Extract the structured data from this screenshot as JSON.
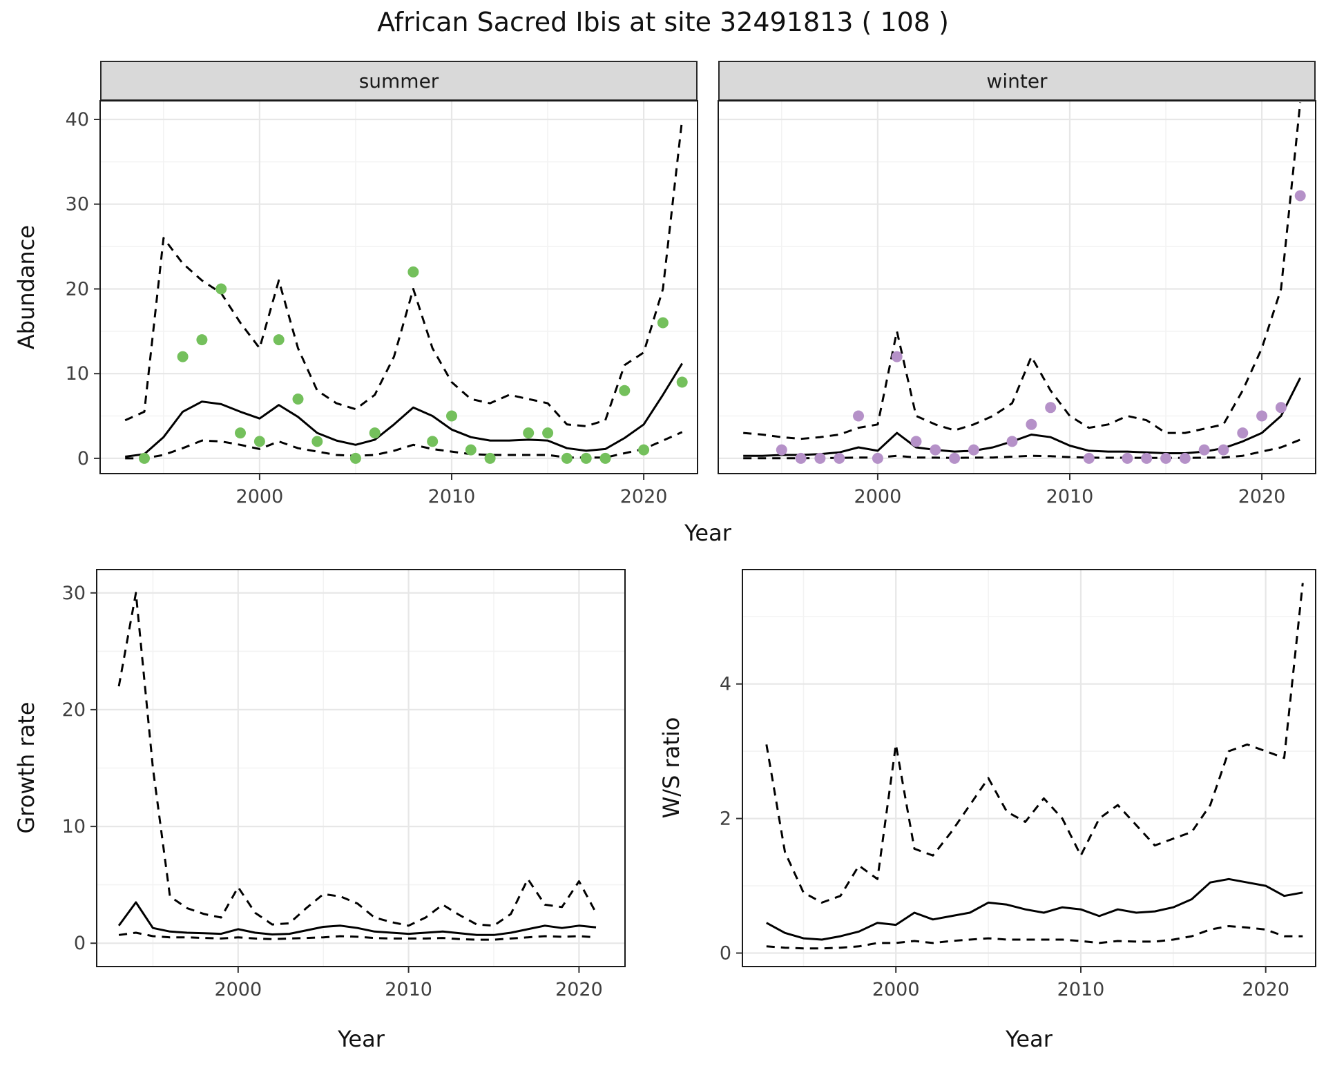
{
  "title": "African Sacred Ibis at site 32491813 ( 108 )",
  "colors": {
    "summer_points": "#74c05c",
    "winter_points": "#b591c8",
    "line": "#000000",
    "grid_major": "#e7e7e7",
    "grid_minor": "#f3f3f3",
    "strip_bg": "#d9d9d9",
    "panel_border": "#1a1a1a"
  },
  "chart_data": [
    {
      "id": "abundance_summer",
      "type": "scatter",
      "facet_label": "summer",
      "ylabel": "Abundance",
      "xlabel": "Year",
      "xlim": [
        1991.7,
        2022.8
      ],
      "ylim": [
        -1.8,
        42.2
      ],
      "x_ticks": [
        2000,
        2010,
        2020
      ],
      "x_minor": [
        1995,
        2005,
        2015
      ],
      "y_ticks": [
        0,
        10,
        20,
        30,
        40
      ],
      "y_minor": [
        5,
        15,
        25,
        35
      ],
      "points": {
        "color": "#74c05c",
        "x": [
          1994,
          1996,
          1997,
          1998,
          1999,
          2000,
          2001,
          2002,
          2003,
          2005,
          2006,
          2008,
          2009,
          2010,
          2011,
          2012,
          2014,
          2015,
          2016,
          2017,
          2018,
          2019,
          2020,
          2021,
          2022
        ],
        "y": [
          0,
          12,
          14,
          20,
          3,
          2,
          14,
          7,
          2,
          0,
          3,
          22,
          2,
          5,
          1,
          0,
          3,
          3,
          0,
          0,
          0,
          8,
          1,
          16,
          9
        ]
      },
      "series": [
        {
          "name": "fit",
          "style": "solid",
          "x": [
            1993,
            1994,
            1995,
            1996,
            1997,
            1998,
            1999,
            2000,
            2001,
            2002,
            2003,
            2004,
            2005,
            2006,
            2007,
            2008,
            2009,
            2010,
            2011,
            2012,
            2013,
            2014,
            2015,
            2016,
            2017,
            2018,
            2019,
            2020,
            2021,
            2022
          ],
          "y": [
            0.2,
            0.5,
            2.5,
            5.5,
            6.7,
            6.4,
            5.5,
            4.7,
            6.3,
            4.9,
            3.0,
            2.1,
            1.6,
            2.2,
            4.0,
            6.0,
            5.0,
            3.4,
            2.5,
            2.1,
            2.1,
            2.2,
            2.1,
            1.2,
            0.9,
            1.1,
            2.4,
            4.0,
            7.5,
            11.2
          ]
        },
        {
          "name": "upper",
          "style": "dashed",
          "x": [
            1993,
            1994,
            1995,
            1996,
            1997,
            1998,
            1999,
            2000,
            2001,
            2002,
            2003,
            2004,
            2005,
            2006,
            2007,
            2008,
            2009,
            2010,
            2011,
            2012,
            2013,
            2014,
            2015,
            2016,
            2017,
            2018,
            2019,
            2020,
            2021,
            2022
          ],
          "y": [
            4.5,
            5.5,
            26,
            23,
            21,
            19.5,
            16,
            13,
            21,
            13,
            8,
            6.5,
            5.8,
            7.5,
            12,
            20,
            13,
            9,
            7,
            6.5,
            7.5,
            7,
            6.5,
            4,
            3.8,
            4.5,
            11,
            12.5,
            20,
            40
          ]
        },
        {
          "name": "lower",
          "style": "dashed",
          "x": [
            1993,
            1994,
            1995,
            1996,
            1997,
            1998,
            1999,
            2000,
            2001,
            2002,
            2003,
            2004,
            2005,
            2006,
            2007,
            2008,
            2009,
            2010,
            2011,
            2012,
            2013,
            2014,
            2015,
            2016,
            2017,
            2018,
            2019,
            2020,
            2021,
            2022
          ],
          "y": [
            0,
            0,
            0.4,
            1.2,
            2.1,
            2,
            1.6,
            1.1,
            2,
            1.2,
            0.8,
            0.4,
            0.3,
            0.4,
            0.9,
            1.6,
            1.1,
            0.8,
            0.5,
            0.4,
            0.4,
            0.4,
            0.4,
            0.1,
            0.1,
            0.1,
            0.6,
            1.1,
            2.1,
            3.1
          ]
        }
      ]
    },
    {
      "id": "abundance_winter",
      "type": "scatter",
      "facet_label": "winter",
      "ylabel": "Abundance",
      "xlabel": "Year",
      "xlim": [
        1991.7,
        2022.8
      ],
      "ylim": [
        -1.8,
        42.2
      ],
      "x_ticks": [
        2000,
        2010,
        2020
      ],
      "x_minor": [
        1995,
        2005,
        2015
      ],
      "y_ticks": [
        0,
        10,
        20,
        30,
        40
      ],
      "y_minor": [
        5,
        15,
        25,
        35
      ],
      "points": {
        "color": "#b591c8",
        "x": [
          1995,
          1996,
          1997,
          1998,
          1999,
          2000,
          2001,
          2002,
          2003,
          2004,
          2005,
          2007,
          2008,
          2009,
          2011,
          2013,
          2014,
          2015,
          2016,
          2017,
          2018,
          2019,
          2020,
          2021,
          2022
        ],
        "y": [
          1,
          0,
          0,
          0,
          5,
          0,
          12,
          2,
          1,
          0,
          1,
          2,
          4,
          6,
          0,
          0,
          0,
          0,
          0,
          1,
          1,
          3,
          5,
          6,
          31
        ]
      },
      "series": [
        {
          "name": "fit",
          "style": "solid",
          "x": [
            1993,
            1994,
            1995,
            1996,
            1997,
            1998,
            1999,
            2000,
            2001,
            2002,
            2003,
            2004,
            2005,
            2006,
            2007,
            2008,
            2009,
            2010,
            2011,
            2012,
            2013,
            2014,
            2015,
            2016,
            2017,
            2018,
            2019,
            2020,
            2021,
            2022
          ],
          "y": [
            0.3,
            0.3,
            0.4,
            0.4,
            0.5,
            0.7,
            1.3,
            0.9,
            3.0,
            1.3,
            1.0,
            0.8,
            0.9,
            1.3,
            2.0,
            2.8,
            2.5,
            1.5,
            0.9,
            0.8,
            0.8,
            0.7,
            0.6,
            0.6,
            0.8,
            1.2,
            2.0,
            3.0,
            5.0,
            9.5
          ]
        },
        {
          "name": "upper",
          "style": "dashed",
          "x": [
            1993,
            1994,
            1995,
            1996,
            1997,
            1998,
            1999,
            2000,
            2001,
            2002,
            2003,
            2004,
            2005,
            2006,
            2007,
            2008,
            2009,
            2010,
            2011,
            2012,
            2013,
            2014,
            2015,
            2016,
            2017,
            2018,
            2019,
            2020,
            2021,
            2022
          ],
          "y": [
            3.0,
            2.8,
            2.5,
            2.3,
            2.5,
            2.8,
            3.6,
            4.0,
            15,
            5,
            4,
            3.3,
            4,
            5,
            6.5,
            12,
            8,
            5,
            3.6,
            4,
            5,
            4.5,
            3,
            3,
            3.5,
            4,
            8,
            13,
            20,
            42
          ]
        },
        {
          "name": "lower",
          "style": "dashed",
          "x": [
            1993,
            1994,
            1995,
            1996,
            1997,
            1998,
            1999,
            2000,
            2001,
            2002,
            2003,
            2004,
            2005,
            2006,
            2007,
            2008,
            2009,
            2010,
            2011,
            2012,
            2013,
            2014,
            2015,
            2016,
            2017,
            2018,
            2019,
            2020,
            2021,
            2022
          ],
          "y": [
            0.02,
            0.02,
            0.02,
            0.02,
            0.03,
            0.05,
            0.1,
            0.08,
            0.3,
            0.1,
            0.08,
            0.06,
            0.08,
            0.1,
            0.2,
            0.3,
            0.25,
            0.15,
            0.08,
            0.07,
            0.07,
            0.06,
            0.05,
            0.05,
            0.08,
            0.1,
            0.3,
            0.8,
            1.3,
            2.2
          ]
        }
      ]
    },
    {
      "id": "growth_rate",
      "type": "line",
      "ylabel": "Growth rate",
      "xlabel": "Year",
      "xlim": [
        1991.7,
        2022.7
      ],
      "ylim": [
        -2,
        32
      ],
      "x_ticks": [
        2000,
        2010,
        2020
      ],
      "x_minor": [
        1995,
        2005,
        2015
      ],
      "y_ticks": [
        0,
        10,
        20,
        30
      ],
      "y_minor": [
        5,
        15,
        25
      ],
      "series": [
        {
          "name": "fit",
          "style": "solid",
          "x": [
            1993,
            1994,
            1995,
            1996,
            1997,
            1998,
            1999,
            2000,
            2001,
            2002,
            2003,
            2004,
            2005,
            2006,
            2007,
            2008,
            2009,
            2010,
            2011,
            2012,
            2013,
            2014,
            2015,
            2016,
            2017,
            2018,
            2019,
            2020,
            2021
          ],
          "y": [
            1.5,
            3.5,
            1.3,
            1.0,
            0.9,
            0.85,
            0.8,
            1.2,
            0.9,
            0.75,
            0.8,
            1.1,
            1.4,
            1.5,
            1.3,
            1.0,
            0.9,
            0.8,
            0.9,
            1.0,
            0.85,
            0.7,
            0.7,
            0.9,
            1.2,
            1.5,
            1.3,
            1.5,
            1.35
          ]
        },
        {
          "name": "upper",
          "style": "dashed",
          "x": [
            1993,
            1994,
            1995,
            1996,
            1997,
            1998,
            1999,
            2000,
            2001,
            2002,
            2003,
            2004,
            2005,
            2006,
            2007,
            2008,
            2009,
            2010,
            2011,
            2012,
            2013,
            2014,
            2015,
            2016,
            2017,
            2018,
            2019,
            2020,
            2021
          ],
          "y": [
            22,
            30,
            15,
            4,
            3,
            2.5,
            2.2,
            4.8,
            2.6,
            1.6,
            1.7,
            3.0,
            4.2,
            4.0,
            3.4,
            2.2,
            1.8,
            1.5,
            2.2,
            3.3,
            2.4,
            1.6,
            1.5,
            2.5,
            5.5,
            3.3,
            3.1,
            5.3,
            2.6
          ]
        },
        {
          "name": "lower",
          "style": "dashed",
          "x": [
            1993,
            1994,
            1995,
            1996,
            1997,
            1998,
            1999,
            2000,
            2001,
            2002,
            2003,
            2004,
            2005,
            2006,
            2007,
            2008,
            2009,
            2010,
            2011,
            2012,
            2013,
            2014,
            2015,
            2016,
            2017,
            2018,
            2019,
            2020,
            2021
          ],
          "y": [
            0.7,
            0.9,
            0.6,
            0.5,
            0.5,
            0.45,
            0.4,
            0.5,
            0.4,
            0.35,
            0.4,
            0.45,
            0.5,
            0.6,
            0.55,
            0.45,
            0.4,
            0.4,
            0.4,
            0.45,
            0.35,
            0.3,
            0.3,
            0.4,
            0.5,
            0.6,
            0.55,
            0.6,
            0.5
          ]
        }
      ]
    },
    {
      "id": "ws_ratio",
      "type": "line",
      "ylabel": "W/S ratio",
      "xlabel": "Year",
      "xlim": [
        1991.7,
        2022.7
      ],
      "ylim": [
        -0.2,
        5.7
      ],
      "x_ticks": [
        2000,
        2010,
        2020
      ],
      "x_minor": [
        1995,
        2005,
        2015
      ],
      "y_ticks": [
        0,
        2,
        4
      ],
      "y_minor": [
        1,
        3,
        5
      ],
      "series": [
        {
          "name": "fit",
          "style": "solid",
          "x": [
            1993,
            1994,
            1995,
            1996,
            1997,
            1998,
            1999,
            2000,
            2001,
            2002,
            2003,
            2004,
            2005,
            2006,
            2007,
            2008,
            2009,
            2010,
            2011,
            2012,
            2013,
            2014,
            2015,
            2016,
            2017,
            2018,
            2019,
            2020,
            2021,
            2022
          ],
          "y": [
            0.45,
            0.3,
            0.22,
            0.2,
            0.25,
            0.32,
            0.45,
            0.42,
            0.6,
            0.5,
            0.55,
            0.6,
            0.75,
            0.72,
            0.65,
            0.6,
            0.68,
            0.65,
            0.55,
            0.65,
            0.6,
            0.62,
            0.68,
            0.8,
            1.05,
            1.1,
            1.05,
            1.0,
            0.85,
            0.9
          ]
        },
        {
          "name": "upper",
          "style": "dashed",
          "x": [
            1993,
            1994,
            1995,
            1996,
            1997,
            1998,
            1999,
            2000,
            2001,
            2002,
            2003,
            2004,
            2005,
            2006,
            2007,
            2008,
            2009,
            2010,
            2011,
            2012,
            2013,
            2014,
            2015,
            2016,
            2017,
            2018,
            2019,
            2020,
            2021,
            2022
          ],
          "y": [
            3.1,
            1.5,
            0.9,
            0.75,
            0.85,
            1.3,
            1.1,
            3.1,
            1.55,
            1.45,
            1.8,
            2.2,
            2.6,
            2.1,
            1.95,
            2.3,
            2.0,
            1.45,
            2.0,
            2.2,
            1.9,
            1.6,
            1.7,
            1.8,
            2.2,
            3.0,
            3.1,
            3.0,
            2.9,
            5.5
          ]
        },
        {
          "name": "lower",
          "style": "dashed",
          "x": [
            1993,
            1994,
            1995,
            1996,
            1997,
            1998,
            1999,
            2000,
            2001,
            2002,
            2003,
            2004,
            2005,
            2006,
            2007,
            2008,
            2009,
            2010,
            2011,
            2012,
            2013,
            2014,
            2015,
            2016,
            2017,
            2018,
            2019,
            2020,
            2021,
            2022
          ],
          "y": [
            0.1,
            0.08,
            0.07,
            0.07,
            0.08,
            0.1,
            0.15,
            0.15,
            0.18,
            0.15,
            0.18,
            0.2,
            0.22,
            0.2,
            0.2,
            0.2,
            0.2,
            0.18,
            0.15,
            0.18,
            0.17,
            0.17,
            0.2,
            0.25,
            0.35,
            0.4,
            0.38,
            0.35,
            0.25,
            0.25
          ]
        }
      ]
    }
  ]
}
